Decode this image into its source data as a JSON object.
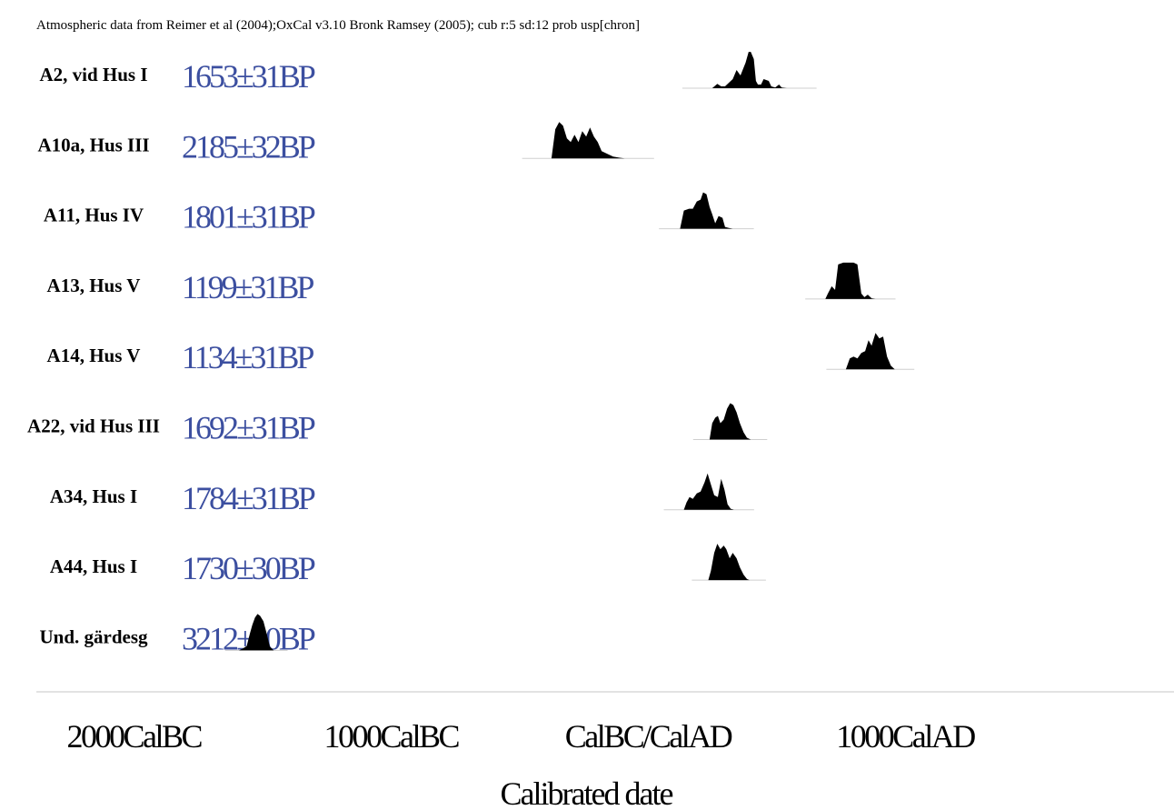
{
  "header": "Atmospheric data from Reimer et al (2004);OxCal v3.10 Bronk Ramsey (2005); cub r:5 sd:12 prob usp[chron]",
  "chart_data": {
    "type": "area",
    "title": "",
    "xlabel": "Calibrated date",
    "ylabel": "",
    "x_unit": "calendar year (negative = BC)",
    "xlim": [
      -2300,
      1550
    ],
    "x_ticks": [
      {
        "value": -1999,
        "label": "2000CalBC"
      },
      {
        "value": -999,
        "label": "1000CalBC"
      },
      {
        "value": 0,
        "label": "CalBC/CalAD"
      },
      {
        "value": 1000,
        "label": "1000CalAD"
      }
    ],
    "samples": [
      {
        "label": "A2, vid Hus I",
        "bp": "1653±31BP",
        "density": {
          "x": [
            250,
            270,
            285,
            300,
            330,
            345,
            360,
            380,
            392,
            400,
            412,
            420,
            428,
            440,
            450,
            470,
            480,
            495,
            510,
            520,
            540
          ],
          "y": [
            0,
            0.12,
            0.05,
            0.05,
            0.25,
            0.5,
            0.35,
            0.7,
            1.0,
            1.0,
            0.8,
            0.2,
            0.1,
            0.1,
            0.25,
            0.2,
            0.05,
            0.02,
            0.1,
            0.02,
            0
          ]
        }
      },
      {
        "label": "A10a, Hus III",
        "bp": "2185±32BP",
        "density": {
          "x": [
            -375,
            -360,
            -345,
            -330,
            -315,
            -300,
            -285,
            -270,
            -255,
            -240,
            -225,
            -210,
            -195,
            -180,
            -165,
            -150,
            -135,
            -110,
            -90
          ],
          "y": [
            0,
            0.8,
            1.0,
            0.9,
            0.55,
            0.45,
            0.65,
            0.45,
            0.75,
            0.6,
            0.85,
            0.6,
            0.45,
            0.2,
            0.15,
            0.1,
            0.05,
            0.02,
            0
          ]
        }
      },
      {
        "label": "A11, Hus IV",
        "bp": "1801±31BP",
        "density": {
          "x": [
            125,
            140,
            160,
            175,
            190,
            205,
            215,
            228,
            240,
            250,
            262,
            275,
            290,
            300,
            315,
            330
          ],
          "y": [
            0,
            0.5,
            0.55,
            0.55,
            0.75,
            0.8,
            1.0,
            0.95,
            0.6,
            0.4,
            0.15,
            0.35,
            0.3,
            0.05,
            0.02,
            0
          ]
        }
      },
      {
        "label": "A13, Hus V",
        "bp": "1199±31BP",
        "density": {
          "x": [
            690,
            700,
            715,
            728,
            740,
            760,
            780,
            800,
            815,
            830,
            842,
            855,
            870,
            885
          ],
          "y": [
            0,
            0.15,
            0.35,
            0.25,
            0.95,
            1.0,
            1.0,
            1.0,
            0.95,
            0.15,
            0.05,
            0.12,
            0.02,
            0
          ]
        }
      },
      {
        "label": "A14, Hus V",
        "bp": "1134±31BP",
        "density": {
          "x": [
            770,
            785,
            800,
            815,
            830,
            845,
            858,
            870,
            885,
            900,
            915,
            930,
            945,
            960
          ],
          "y": [
            0,
            0.3,
            0.35,
            0.3,
            0.45,
            0.5,
            0.8,
            0.65,
            1.0,
            0.85,
            0.9,
            0.35,
            0.1,
            0
          ]
        }
      },
      {
        "label": "A22, vid Hus III",
        "bp": "1692±31BP",
        "density": {
          "x": [
            240,
            250,
            262,
            272,
            282,
            295,
            308,
            320,
            332,
            345,
            358,
            372,
            385,
            400
          ],
          "y": [
            0,
            0.45,
            0.6,
            0.65,
            0.45,
            0.55,
            0.85,
            1.0,
            0.95,
            0.75,
            0.45,
            0.2,
            0.05,
            0
          ]
        }
      },
      {
        "label": "A34, Hus I",
        "bp": "1784±31BP",
        "density": {
          "x": [
            140,
            150,
            162,
            175,
            190,
            205,
            220,
            232,
            245,
            258,
            272,
            285,
            298,
            310,
            322,
            335
          ],
          "y": [
            0,
            0.2,
            0.35,
            0.3,
            0.45,
            0.5,
            0.75,
            1.0,
            0.7,
            0.4,
            0.35,
            0.85,
            0.55,
            0.15,
            0.03,
            0
          ]
        }
      },
      {
        "label": "A44, Hus I",
        "bp": "1730±30BP",
        "density": {
          "x": [
            235,
            245,
            258,
            270,
            282,
            295,
            305,
            318,
            330,
            345,
            358,
            372,
            385,
            395
          ],
          "y": [
            0,
            0.25,
            0.75,
            1.0,
            0.85,
            0.95,
            0.85,
            0.6,
            0.75,
            0.6,
            0.35,
            0.15,
            0.03,
            0
          ]
        }
      },
      {
        "label": "Und. gärdesg",
        "bp": "3212±30BP",
        "density": {
          "x": [
            -1590,
            -1575,
            -1560,
            -1548,
            -1538,
            -1528,
            -1518,
            -1508,
            -1495,
            -1482,
            -1470,
            -1455
          ],
          "y": [
            0,
            0.05,
            0.12,
            0.45,
            0.7,
            0.9,
            1.0,
            0.95,
            0.8,
            0.45,
            0.1,
            0
          ]
        }
      }
    ]
  }
}
